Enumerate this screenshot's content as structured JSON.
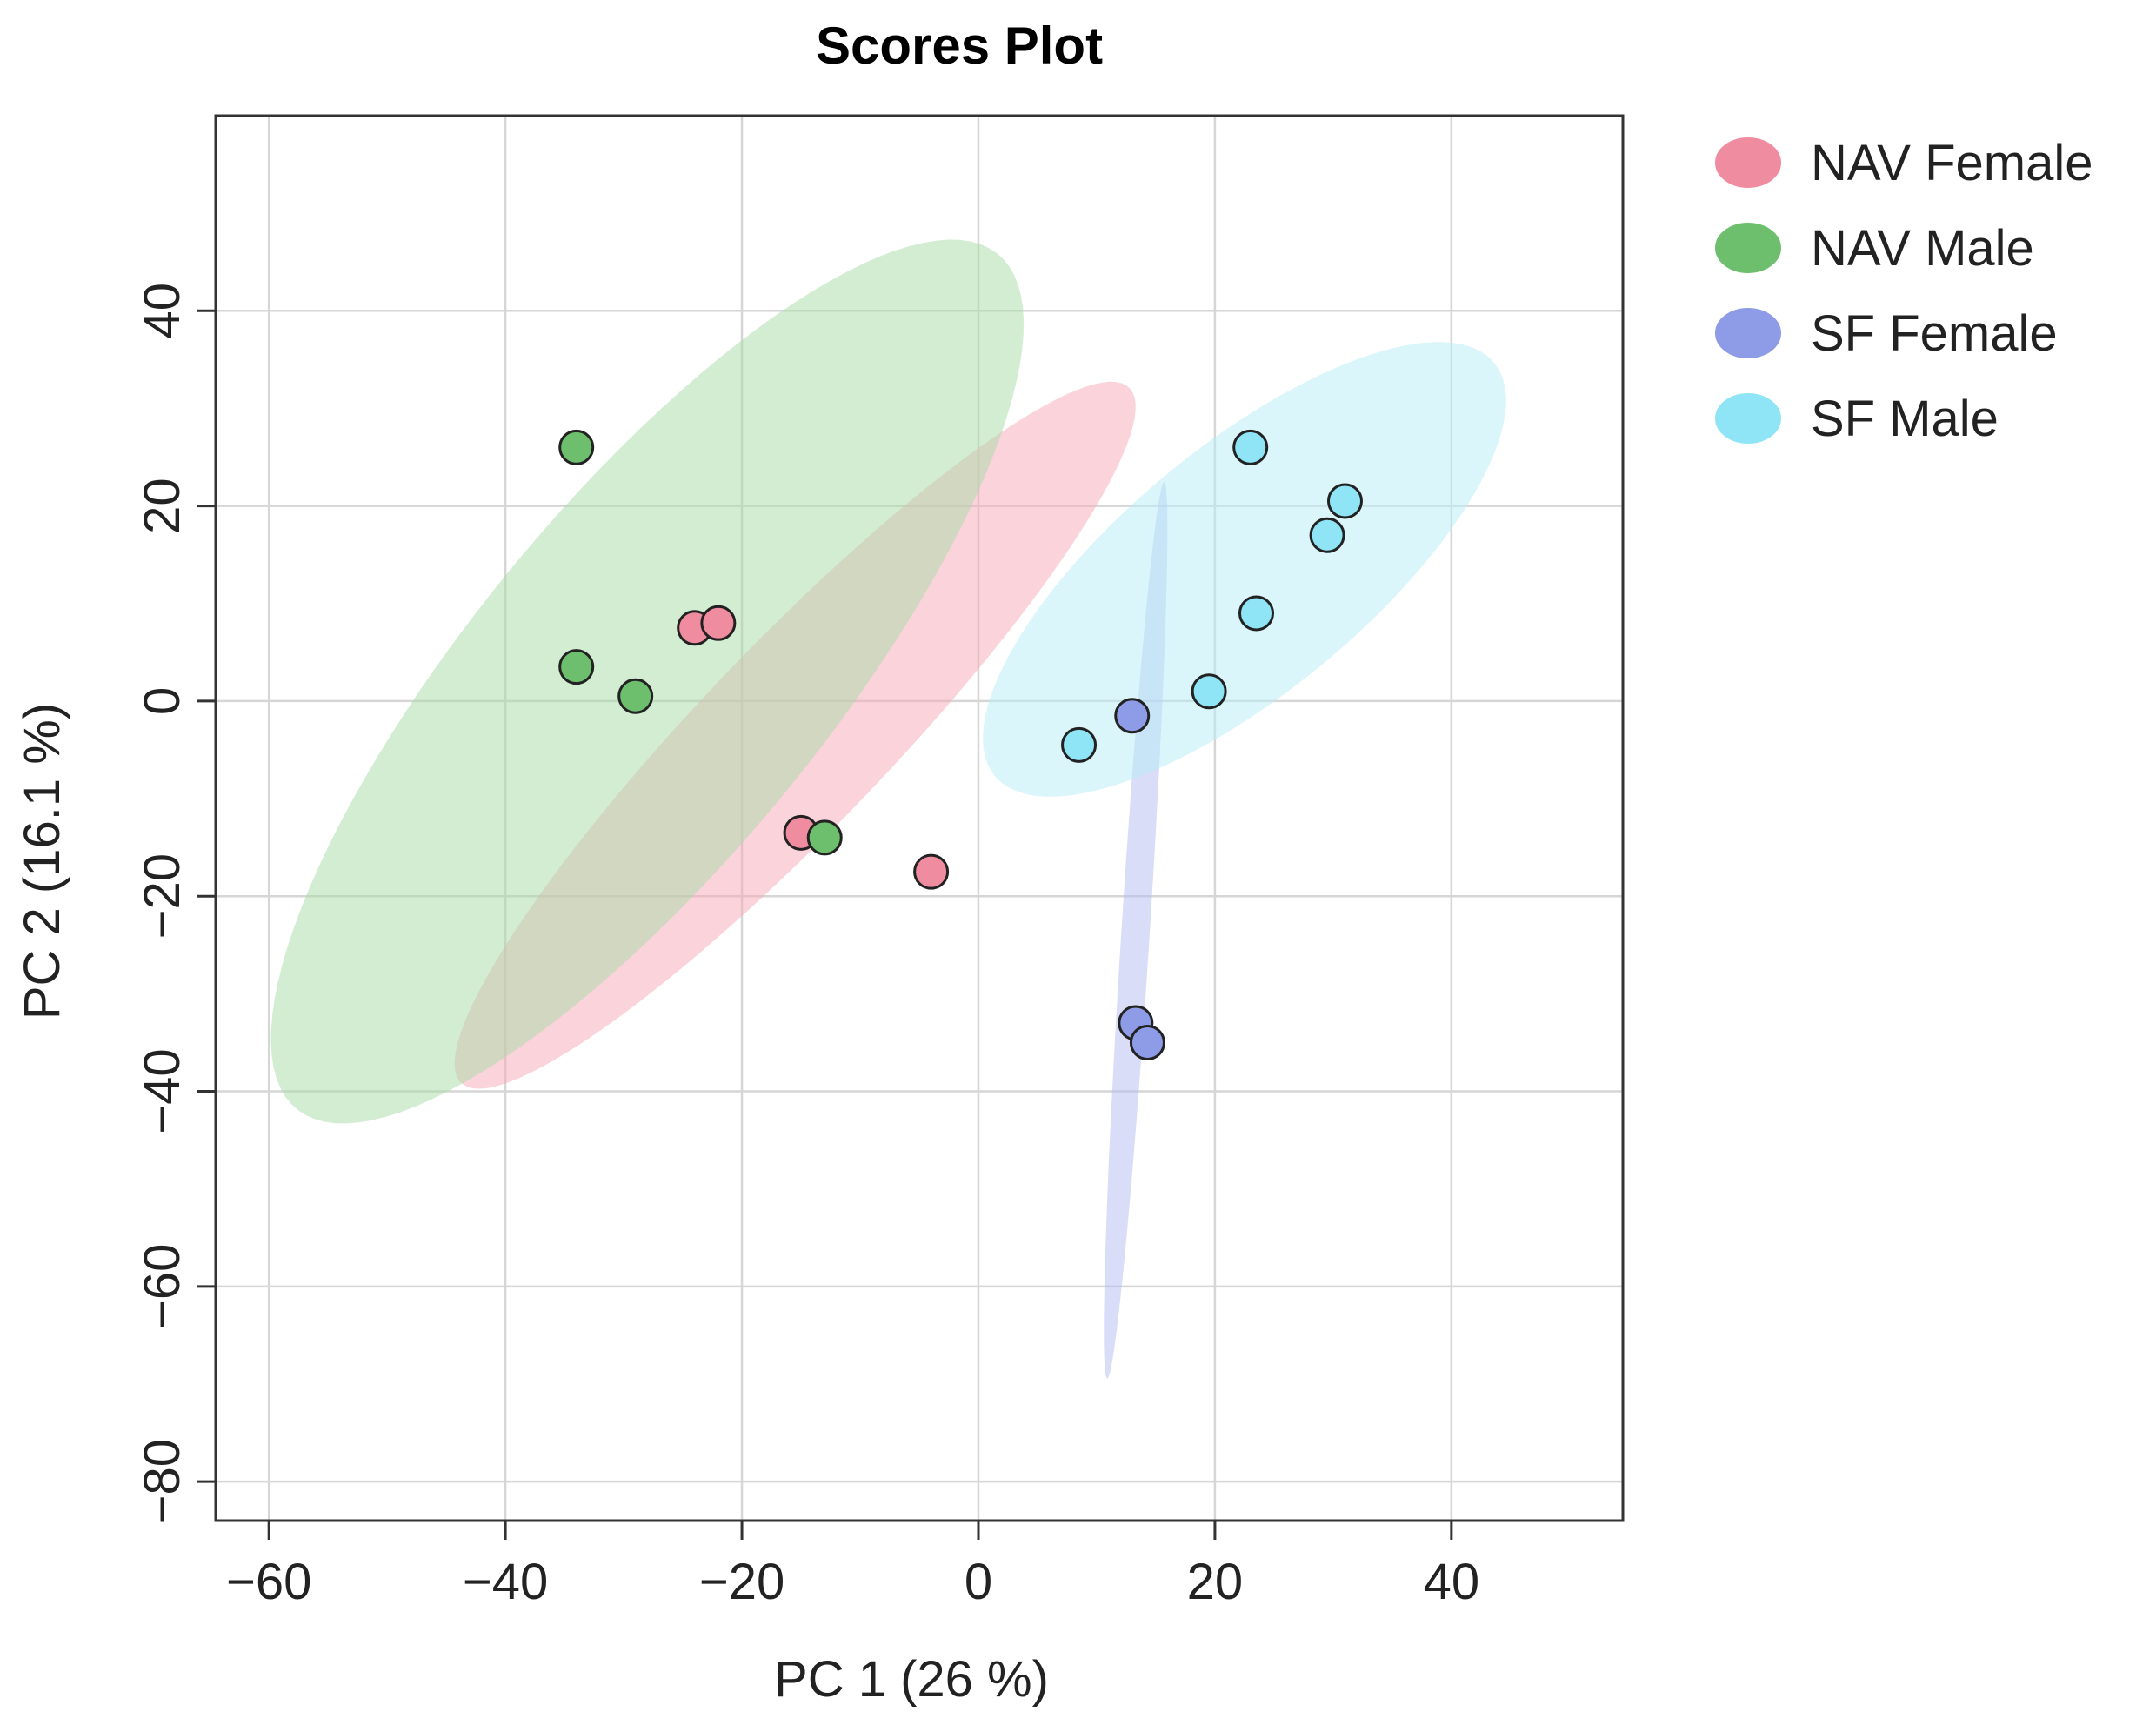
{
  "chart_data": {
    "type": "scatter",
    "title": "Scores Plot",
    "xlabel": "PC 1 (26 %)",
    "ylabel": "PC 2 (16.1 %)",
    "xlim": [
      -64.5,
      54.5
    ],
    "ylim": [
      -84,
      60
    ],
    "xticks": [
      -60,
      -40,
      -20,
      0,
      20,
      40
    ],
    "yticks": [
      -80,
      -60,
      -40,
      -20,
      0,
      20,
      40
    ],
    "xtick_labels": [
      "−60",
      "−40",
      "−20",
      "0",
      "20",
      "40"
    ],
    "ytick_labels": [
      "−80",
      "−60",
      "−40",
      "−20",
      "0",
      "20",
      "40"
    ],
    "grid": true,
    "legend_position": "top-right outside",
    "series": [
      {
        "name": "NAV Female",
        "color": "#F08CA0",
        "ellipse_color": "#F5A7B8",
        "points": [
          [
            -24,
            7.5
          ],
          [
            -22,
            8
          ],
          [
            -15,
            -13.5
          ],
          [
            -4,
            -17.5
          ]
        ],
        "ellipse": {
          "cx": -15.5,
          "cy": -3.5,
          "rx": 45.5,
          "ry": 8.5,
          "angle_deg": -52
        }
      },
      {
        "name": "NAV Male",
        "color": "#6DBF6D",
        "ellipse_color": "#A8DCA8",
        "points": [
          [
            -34,
            26
          ],
          [
            -34,
            3.5
          ],
          [
            -29,
            0.5
          ],
          [
            -13,
            -14
          ]
        ],
        "ellipse": {
          "cx": -28,
          "cy": 2,
          "rx": 53,
          "ry": 16,
          "angle_deg": -57
        }
      },
      {
        "name": "SF Female",
        "color": "#8E9BE6",
        "ellipse_color": "#B3BCF0",
        "points": [
          [
            13,
            -1.5
          ],
          [
            13.3,
            -33
          ],
          [
            14.3,
            -35
          ]
        ],
        "ellipse": {
          "cx": 13.3,
          "cy": -23.5,
          "rx": 46,
          "ry": 1.2,
          "angle_deg": -87
        }
      },
      {
        "name": "SF Male",
        "color": "#8FE5F5",
        "ellipse_color": "#B8EEF8",
        "points": [
          [
            23,
            26
          ],
          [
            31,
            20.5
          ],
          [
            29.5,
            17
          ],
          [
            23.5,
            9
          ],
          [
            19.5,
            1
          ],
          [
            8.5,
            -4.5
          ]
        ],
        "ellipse": {
          "cx": 22.5,
          "cy": 13.5,
          "rx": 30,
          "ry": 11.5,
          "angle_deg": -47
        }
      }
    ]
  }
}
